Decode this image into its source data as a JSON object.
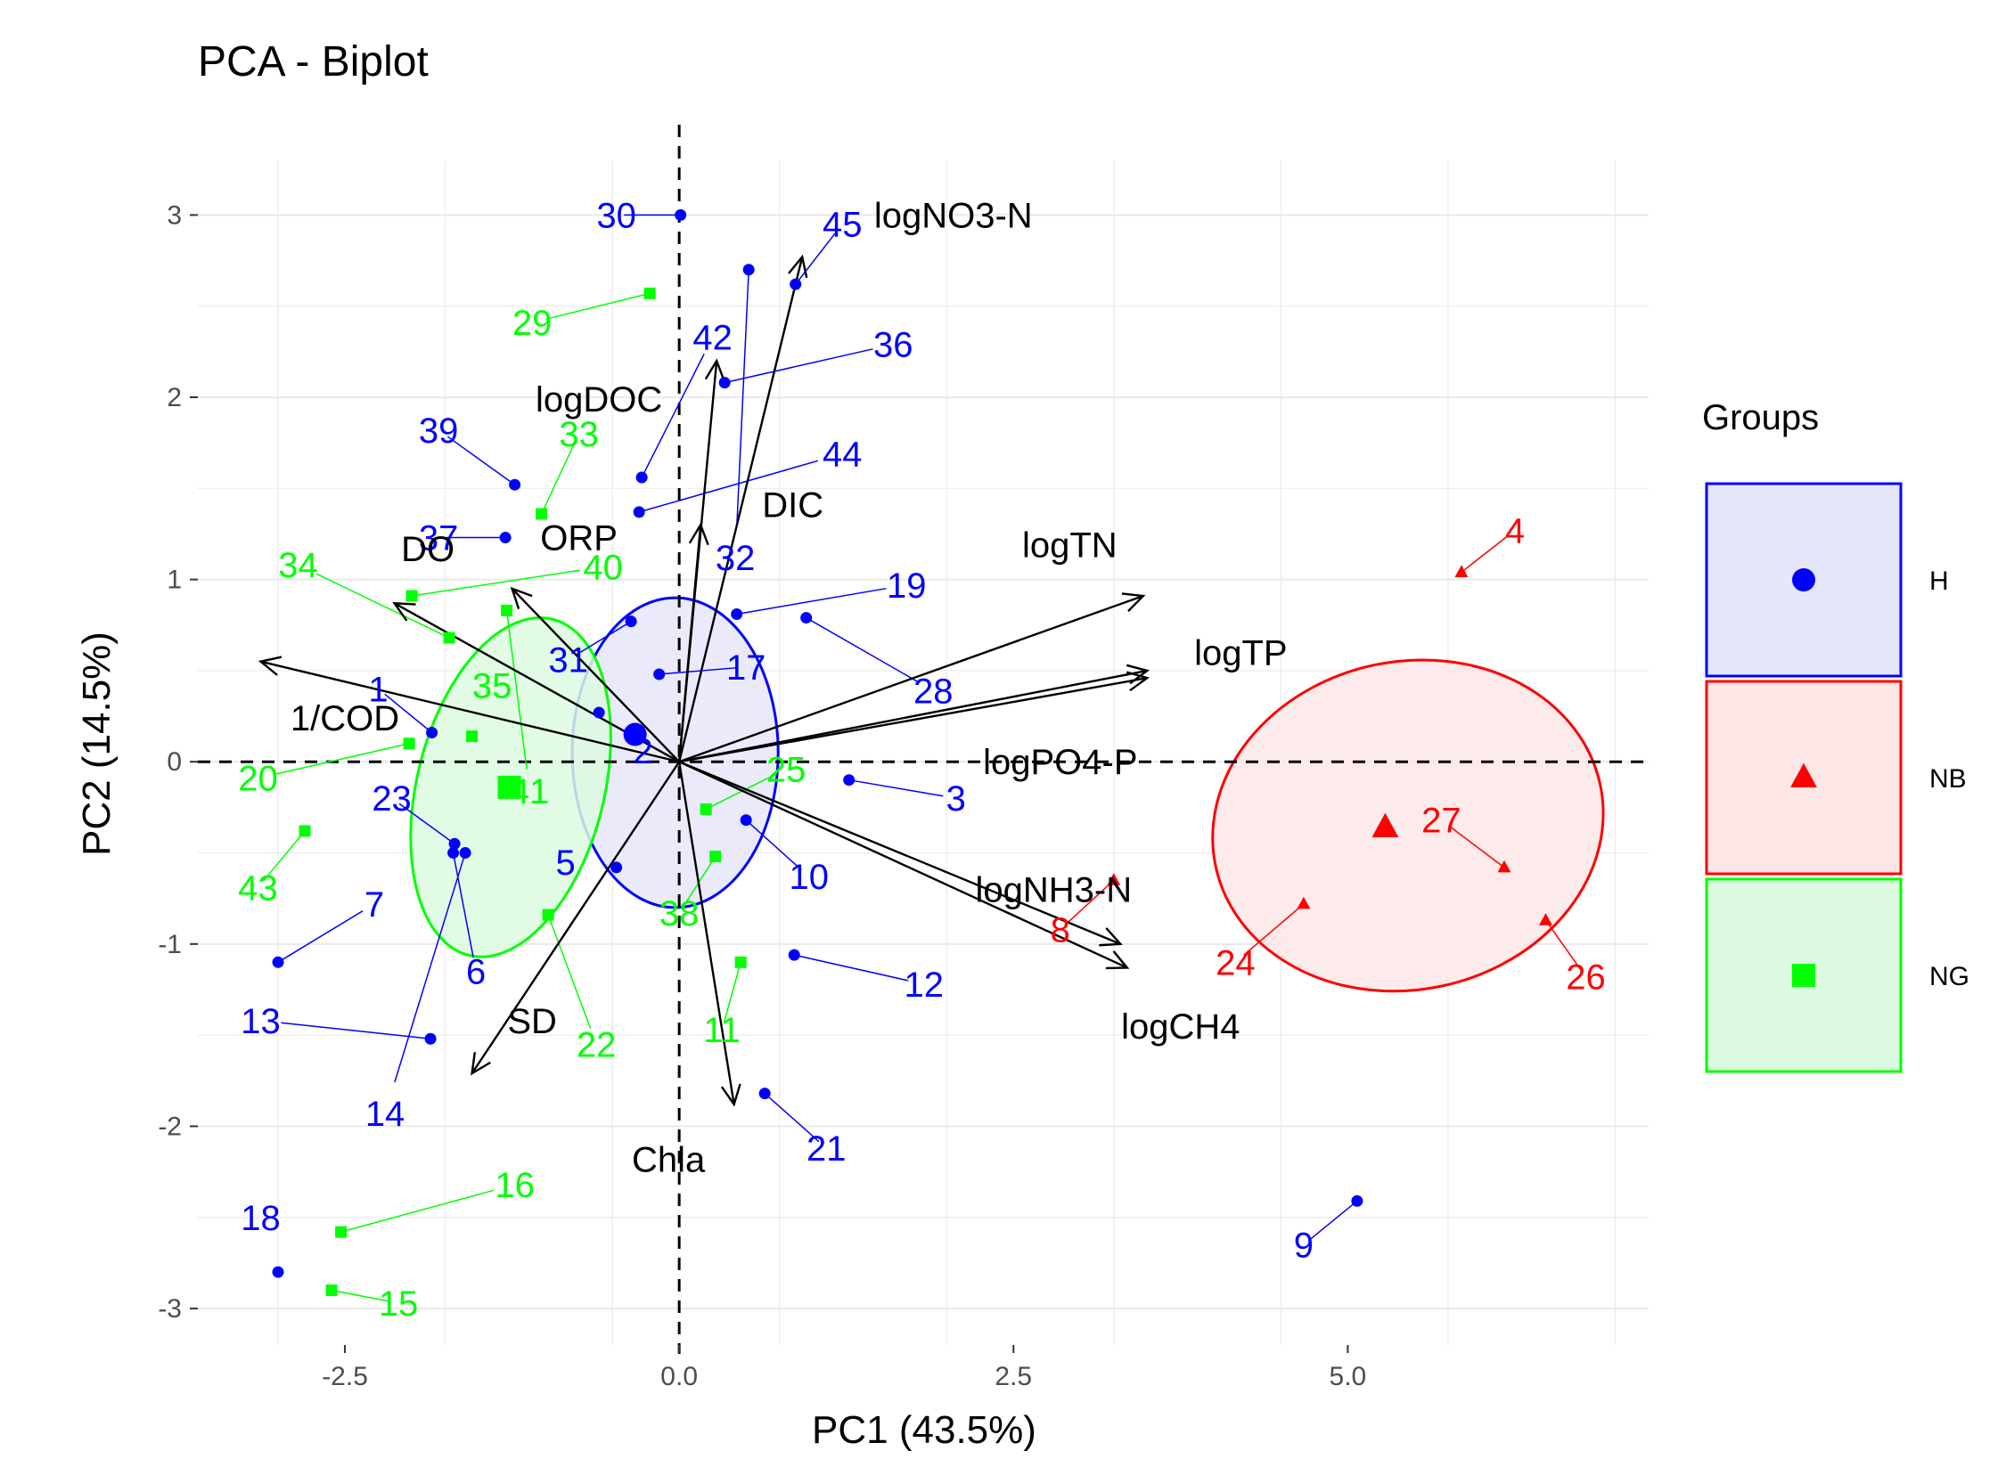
{
  "chart_data": {
    "type": "scatter",
    "subtype": "pca-biplot",
    "title": "PCA - Biplot",
    "xlabel": "PC1 (43.5%)",
    "ylabel": "PC2 (14.5%)",
    "xlim": [
      -3.6,
      7.25
    ],
    "ylim": [
      -3.2,
      3.3
    ],
    "xticks": [
      -2.5,
      0.0,
      2.5,
      5.0
    ],
    "xtick_labels": [
      "-2.5",
      "0.0",
      "2.5",
      "5.0"
    ],
    "yticks": [
      -3,
      -2,
      -1,
      0,
      1,
      2,
      3
    ],
    "ytick_labels": [
      "-3",
      "-2",
      "-1",
      "0",
      "1",
      "2",
      "3"
    ],
    "legend_title": "Groups",
    "legend_position": "right",
    "groups": [
      {
        "name": "H",
        "color": "#0000ff",
        "fill": "#e6e6fa",
        "marker": "circle"
      },
      {
        "name": "NB",
        "color": "#ff0000",
        "fill": "#fde6e6",
        "marker": "triangle"
      },
      {
        "name": "NG",
        "color": "#00ff00",
        "fill": "#dcfadf",
        "marker": "square"
      }
    ],
    "points": [
      {
        "id": "1",
        "group": "H",
        "x": -1.85,
        "y": 0.16,
        "lx": -2.25,
        "ly": 0.4
      },
      {
        "id": "2",
        "group": "H",
        "x": -0.6,
        "y": 0.27,
        "lx": -0.27,
        "ly": 0.06
      },
      {
        "id": "3",
        "group": "H",
        "x": 1.27,
        "y": -0.1,
        "lx": 2.07,
        "ly": -0.2
      },
      {
        "id": "4",
        "group": "NB",
        "x": 5.85,
        "y": 1.04,
        "lx": 6.25,
        "ly": 1.27
      },
      {
        "id": "5",
        "group": "H",
        "x": -0.47,
        "y": -0.58,
        "lx": -0.85,
        "ly": -0.55
      },
      {
        "id": "6",
        "group": "H",
        "x": -1.69,
        "y": -0.5,
        "lx": -1.52,
        "ly": -1.15
      },
      {
        "id": "7",
        "group": "H",
        "x": -3.0,
        "y": -1.1,
        "lx": -2.28,
        "ly": -0.78
      },
      {
        "id": "8",
        "group": "NB",
        "x": 3.25,
        "y": -0.65,
        "lx": 2.85,
        "ly": -0.92
      },
      {
        "id": "9",
        "group": "H",
        "x": 5.07,
        "y": -2.41,
        "lx": 4.67,
        "ly": -2.65
      },
      {
        "id": "10",
        "group": "H",
        "x": 0.5,
        "y": -0.32,
        "lx": 0.97,
        "ly": -0.63
      },
      {
        "id": "11",
        "group": "NG",
        "x": 0.46,
        "y": -1.1,
        "lx": 0.32,
        "ly": -1.47
      },
      {
        "id": "12",
        "group": "H",
        "x": 0.86,
        "y": -1.06,
        "lx": 1.83,
        "ly": -1.22
      },
      {
        "id": "13",
        "group": "H",
        "x": -1.86,
        "y": -1.52,
        "lx": -3.13,
        "ly": -1.42
      },
      {
        "id": "14",
        "group": "H",
        "x": -1.6,
        "y": -0.5,
        "lx": -2.2,
        "ly": -1.93
      },
      {
        "id": "15",
        "group": "NG",
        "x": -2.6,
        "y": -2.9,
        "lx": -2.1,
        "ly": -2.97
      },
      {
        "id": "16",
        "group": "NG",
        "x": -2.53,
        "y": -2.58,
        "lx": -1.23,
        "ly": -2.32
      },
      {
        "id": "17",
        "group": "H",
        "x": -0.15,
        "y": 0.48,
        "lx": 0.5,
        "ly": 0.52
      },
      {
        "id": "18",
        "group": "H",
        "x": -3.0,
        "y": -2.8,
        "lx": -3.13,
        "ly": -2.5
      },
      {
        "id": "19",
        "group": "H",
        "x": 0.43,
        "y": 0.81,
        "lx": 1.7,
        "ly": 0.97
      },
      {
        "id": "20",
        "group": "NG",
        "x": -2.02,
        "y": 0.1,
        "lx": -3.15,
        "ly": -0.09
      },
      {
        "id": "21",
        "group": "H",
        "x": 0.64,
        "y": -1.82,
        "lx": 1.1,
        "ly": -2.12
      },
      {
        "id": "22",
        "group": "NG",
        "x": -0.98,
        "y": -0.84,
        "lx": -0.62,
        "ly": -1.55
      },
      {
        "id": "23",
        "group": "H",
        "x": -1.68,
        "y": -0.45,
        "lx": -2.15,
        "ly": -0.2
      },
      {
        "id": "24",
        "group": "NB",
        "x": 4.67,
        "y": -0.78,
        "lx": 4.16,
        "ly": -1.1
      },
      {
        "id": "25",
        "group": "NG",
        "x": 0.2,
        "y": -0.26,
        "lx": 0.8,
        "ly": -0.04
      },
      {
        "id": "26",
        "group": "NB",
        "x": 6.48,
        "y": -0.87,
        "lx": 6.78,
        "ly": -1.18
      },
      {
        "id": "27",
        "group": "NB",
        "x": 6.17,
        "y": -0.58,
        "lx": 5.7,
        "ly": -0.32
      },
      {
        "id": "28",
        "group": "H",
        "x": 0.95,
        "y": 0.79,
        "lx": 1.9,
        "ly": 0.39
      },
      {
        "id": "29",
        "group": "NG",
        "x": -0.22,
        "y": 2.57,
        "lx": -1.1,
        "ly": 2.41
      },
      {
        "id": "30",
        "group": "H",
        "x": 0.01,
        "y": 3.0,
        "lx": -0.47,
        "ly": 3.0
      },
      {
        "id": "31",
        "group": "H",
        "x": -0.36,
        "y": 0.77,
        "lx": -0.83,
        "ly": 0.56
      },
      {
        "id": "32",
        "group": "H",
        "x": 0.52,
        "y": 2.7,
        "lx": 0.42,
        "ly": 1.12
      },
      {
        "id": "33",
        "group": "NG",
        "x": -1.03,
        "y": 1.36,
        "lx": -0.75,
        "ly": 1.8
      },
      {
        "id": "34",
        "group": "NG",
        "x": -1.72,
        "y": 0.68,
        "lx": -2.85,
        "ly": 1.08
      },
      {
        "id": "35",
        "group": "NG",
        "x": -1.55,
        "y": 0.14,
        "lx": -1.4,
        "ly": 0.42
      },
      {
        "id": "36",
        "group": "H",
        "x": 0.34,
        "y": 2.08,
        "lx": 1.6,
        "ly": 2.29
      },
      {
        "id": "37",
        "group": "H",
        "x": -1.3,
        "y": 1.23,
        "lx": -1.8,
        "ly": 1.23
      },
      {
        "id": "38",
        "group": "NG",
        "x": 0.27,
        "y": -0.52,
        "lx": 0.0,
        "ly": -0.83
      },
      {
        "id": "39",
        "group": "H",
        "x": -1.23,
        "y": 1.52,
        "lx": -1.8,
        "ly": 1.82
      },
      {
        "id": "40",
        "group": "NG",
        "x": -2.0,
        "y": 0.91,
        "lx": -0.57,
        "ly": 1.07
      },
      {
        "id": "41",
        "group": "NG",
        "x": -1.29,
        "y": 0.83,
        "lx": -1.12,
        "ly": -0.16
      },
      {
        "id": "42",
        "group": "H",
        "x": -0.28,
        "y": 1.56,
        "lx": 0.25,
        "ly": 2.33
      },
      {
        "id": "43",
        "group": "NG",
        "x": -2.8,
        "y": -0.38,
        "lx": -3.15,
        "ly": -0.69
      },
      {
        "id": "44",
        "group": "H",
        "x": -0.3,
        "y": 1.37,
        "lx": 1.22,
        "ly": 1.69
      },
      {
        "id": "45",
        "group": "H",
        "x": 0.87,
        "y": 2.62,
        "lx": 1.22,
        "ly": 2.95
      }
    ],
    "group_means": [
      {
        "group": "H",
        "x": -0.33,
        "y": 0.15
      },
      {
        "group": "NB",
        "x": 5.28,
        "y": -0.36
      },
      {
        "group": "NG",
        "x": -1.27,
        "y": -0.14
      }
    ],
    "ellipses": [
      {
        "group": "H",
        "cx": -0.03,
        "cy": 0.05,
        "rx": 0.77,
        "ry": 0.85,
        "angle_deg": 0
      },
      {
        "group": "NB",
        "cx": 5.45,
        "cy": -0.35,
        "rx": 1.47,
        "ry": 0.9,
        "angle_deg": -12
      },
      {
        "group": "NG",
        "cx": -1.26,
        "cy": -0.14,
        "rx": 0.7,
        "ry": 0.95,
        "angle_deg": 14
      }
    ],
    "variables": [
      {
        "name": "logNO3-N",
        "x": 0.92,
        "y": 2.77,
        "lx": 2.05,
        "ly": 3.0
      },
      {
        "name": "logDOC",
        "x": 0.28,
        "y": 2.2,
        "lx": -0.6,
        "ly": 1.99
      },
      {
        "name": "DIC",
        "x": 0.16,
        "y": 1.3,
        "lx": 0.85,
        "ly": 1.41
      },
      {
        "name": "logTN",
        "x": 3.47,
        "y": 0.91,
        "lx": 2.92,
        "ly": 1.19
      },
      {
        "name": "logTP",
        "x": 3.5,
        "y": 0.5,
        "lx": 4.2,
        "ly": 0.6
      },
      {
        "name": "logPO4-P",
        "x": 3.5,
        "y": 0.46,
        "lx": 2.85,
        "ly": 0.0
      },
      {
        "name": "logNH3-N",
        "x": 3.3,
        "y": -1.0,
        "lx": 2.8,
        "ly": -0.7
      },
      {
        "name": "logCH4",
        "x": 3.35,
        "y": -1.13,
        "lx": 3.75,
        "ly": -1.45
      },
      {
        "name": "Chla",
        "x": 0.41,
        "y": -1.88,
        "lx": -0.08,
        "ly": -2.18
      },
      {
        "name": "SD",
        "x": -1.55,
        "y": -1.71,
        "lx": -1.1,
        "ly": -1.42
      },
      {
        "name": "DO",
        "x": -2.13,
        "y": 0.87,
        "lx": -1.88,
        "ly": 1.17
      },
      {
        "name": "ORP",
        "x": -1.25,
        "y": 0.95,
        "lx": -0.75,
        "ly": 1.23
      },
      {
        "name": "1/COD",
        "x": -3.13,
        "y": 0.55,
        "lx": -2.5,
        "ly": 0.24
      }
    ],
    "ref_lines": {
      "x": 0,
      "y": 0
    }
  }
}
